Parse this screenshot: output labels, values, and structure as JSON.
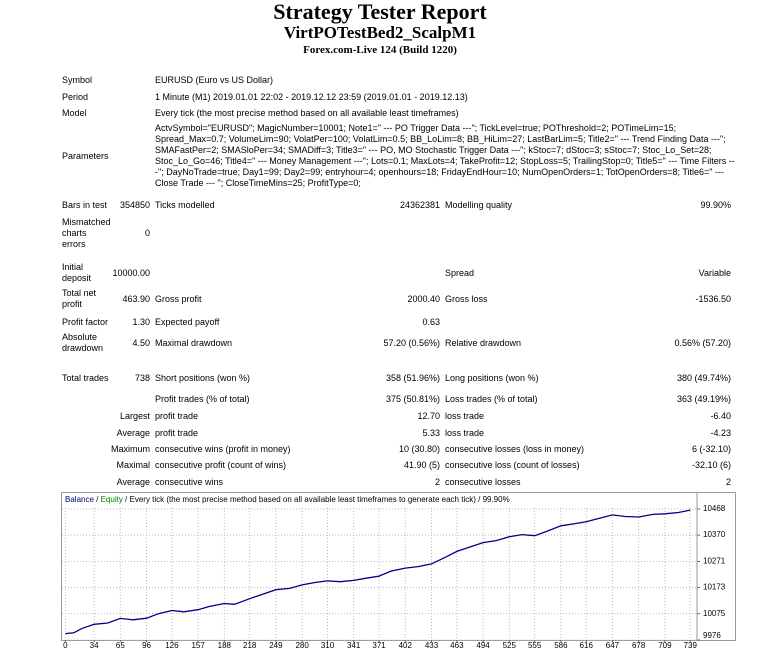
{
  "header": {
    "title": "Strategy Tester Report",
    "subtitle": "VirtPOTestBed2_ScalpM1",
    "server": "Forex.com-Live 124 (Build 1220)"
  },
  "info": [
    {
      "label": "Symbol",
      "value": "EURUSD (Euro vs US Dollar)"
    },
    {
      "label": "Period",
      "value": "1 Minute (M1) 2019.01.01 22:02 - 2019.12.12 23:59 (2019.01.01 - 2019.12.13)"
    },
    {
      "label": "Model",
      "value": "Every tick (the most precise method based on all available least timeframes)"
    },
    {
      "label": "Parameters",
      "value": "ActvSymbol=\"EURUSD\"; MagicNumber=10001; Note1=\" --- PO Trigger Data ---\"; TickLevel=true; POThreshold=2; POTimeLim=15; Spread_Max=0.7; VolumeLim=90; VolatPer=100; VolatLim=0.5; BB_LoLim=8; BB_HiLim=27; LastBarLim=5; Title2=\" --- Trend Finding Data ---\"; SMAFastPer=2; SMASloPer=34; SMADiff=3; Title3=\" --- PO, MO Stochastic Trigger Data ---\"; kStoc=7; dStoc=3; sStoc=7; Stoc_Lo_Set=28; Stoc_Lo_Go=46; Title4=\" --- Money Management ---\"; Lots=0.1; MaxLots=4; TakeProfit=12; StopLoss=5; TrailingStop=0; Title5=\" --- Time Filters ---\"; DayNoTrade=true; Day1=99; Day2=99; entryhour=4; openhours=18; FridayEndHour=10; NumOpenOrders=1; TotOpenOrders=8; Title6=\" --- Close Trade --- \"; CloseTimeMins=25; ProfitType=0;"
    }
  ],
  "stats": [
    [
      "Bars in test",
      "354850",
      "Ticks modelled",
      "24362381",
      "Modelling quality",
      "99.90%"
    ],
    [
      "Mismatched charts errors",
      "0",
      null,
      null,
      null,
      null
    ],
    [
      "Initial deposit",
      "10000.00",
      null,
      null,
      "Spread",
      "Variable"
    ],
    [
      "Total net profit",
      "463.90",
      "Gross profit",
      "2000.40",
      "Gross loss",
      "-1536.50"
    ],
    [
      "Profit factor",
      "1.30",
      "Expected payoff",
      "0.63",
      null,
      null
    ],
    [
      "Absolute drawdown",
      "4.50",
      "Maximal drawdown",
      "57.20 (0.56%)",
      "Relative drawdown",
      "0.56% (57.20)"
    ],
    [
      "Total trades",
      "738",
      "Short positions (won %)",
      "358 (51.96%)",
      "Long positions (won %)",
      "380 (49.74%)"
    ],
    [
      null,
      null,
      "Profit trades (% of total)",
      "375 (50.81%)",
      "Loss trades (% of total)",
      "363 (49.19%)"
    ],
    [
      "Largest",
      null,
      "profit trade",
      "12.70",
      "loss trade",
      "-6.40"
    ],
    [
      "Average",
      null,
      "profit trade",
      "5.33",
      "loss trade",
      "-4.23"
    ],
    [
      "Maximum",
      null,
      "consecutive wins (profit in money)",
      "10 (30.80)",
      "consecutive losses (loss in money)",
      "6 (-32.10)"
    ],
    [
      "Maximal",
      null,
      "consecutive profit (count of wins)",
      "41.90 (5)",
      "consecutive loss (count of losses)",
      "-32.10 (6)"
    ],
    [
      "Average",
      null,
      "consecutive wins",
      "2",
      "consecutive losses",
      "2"
    ]
  ],
  "chart_data": {
    "type": "line",
    "subtitle": "Every tick (the most precise method based on all available least timeframes to generate each tick)",
    "quality": "99.90%",
    "equity_name": "Equity",
    "equity_color": "#008000",
    "x": [
      0,
      10,
      20,
      34,
      50,
      65,
      80,
      96,
      110,
      126,
      140,
      157,
      170,
      188,
      200,
      218,
      235,
      249,
      265,
      280,
      295,
      310,
      325,
      341,
      355,
      371,
      385,
      402,
      418,
      433,
      448,
      463,
      478,
      494,
      510,
      525,
      540,
      555,
      570,
      586,
      600,
      616,
      630,
      647,
      662,
      678,
      695,
      709,
      725,
      739
    ],
    "series": [
      {
        "name": "Balance",
        "color": "#00008b",
        "values": [
          10000,
          10003,
          10020,
          10035,
          10040,
          10057,
          10052,
          10058,
          10075,
          10087,
          10082,
          10090,
          10102,
          10113,
          10110,
          10131,
          10150,
          10165,
          10170,
          10183,
          10192,
          10198,
          10195,
          10200,
          10208,
          10216,
          10235,
          10246,
          10252,
          10262,
          10285,
          10309,
          10325,
          10342,
          10350,
          10364,
          10372,
          10368,
          10385,
          10405,
          10412,
          10420,
          10432,
          10446,
          10440,
          10438,
          10448,
          10450,
          10455,
          10464
        ]
      }
    ],
    "xlim": [
      -4,
      747
    ],
    "xticks": [
      0,
      34,
      65,
      96,
      126,
      157,
      188,
      218,
      249,
      280,
      310,
      341,
      371,
      402,
      433,
      463,
      494,
      525,
      555,
      586,
      616,
      647,
      678,
      709,
      739
    ],
    "ylim": [
      9976,
      10502
    ],
    "yticks": [
      9976,
      10075,
      10173,
      10271,
      10370,
      10468
    ],
    "grid": true
  }
}
